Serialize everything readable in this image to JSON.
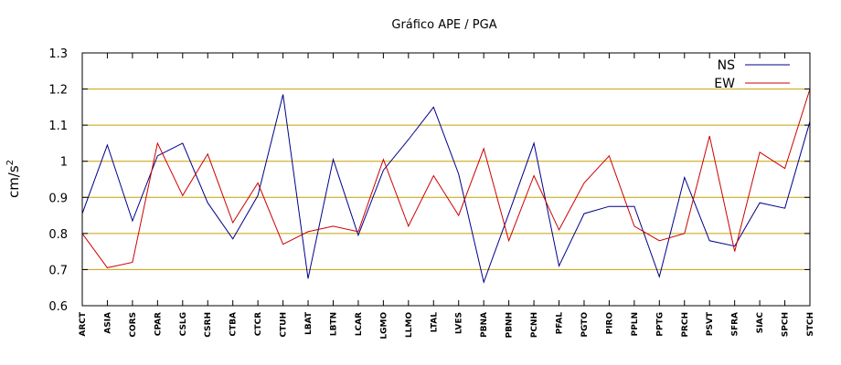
{
  "chart_data": {
    "type": "line",
    "title": "Gráfico  APE / PGA",
    "ylabel": "cm/s",
    "ylabel_exponent": "2",
    "ylim": [
      0.6,
      1.3
    ],
    "yticks": [
      "0.6",
      "0.7",
      "0.8",
      "0.9",
      "1",
      "1.1",
      "1.2",
      "1.3"
    ],
    "grid": "horizontal",
    "legend": "top-right",
    "categories": [
      "ARCT",
      "ASIA",
      "CORS",
      "CPAR",
      "CSLG",
      "CSRH",
      "CTBA",
      "CTCR",
      "CTUH",
      "LBAT",
      "LBTN",
      "LCAR",
      "LGMO",
      "LLMO",
      "LTAL",
      "LVES",
      "PBNA",
      "PBNH",
      "PCNH",
      "PFAL",
      "PGTO",
      "PIRO",
      "PPLN",
      "PPTG",
      "PRCH",
      "PSVT",
      "SFRA",
      "SIAC",
      "SPCH",
      "STCH"
    ],
    "series": [
      {
        "name": "NS",
        "color": "#00008b",
        "values": [
          0.855,
          1.045,
          0.835,
          1.015,
          1.05,
          0.885,
          0.785,
          0.905,
          1.185,
          0.675,
          1.005,
          0.795,
          0.975,
          1.06,
          1.15,
          0.965,
          0.665,
          0.855,
          1.05,
          0.71,
          0.855,
          0.875,
          0.875,
          0.68,
          0.955,
          0.78,
          0.765,
          0.885,
          0.87,
          1.11
        ]
      },
      {
        "name": "EW",
        "color": "#cc0000",
        "values": [
          0.8,
          0.705,
          0.72,
          1.05,
          0.905,
          1.02,
          0.83,
          0.94,
          0.77,
          0.805,
          0.82,
          0.805,
          1.005,
          0.82,
          0.96,
          0.85,
          1.035,
          0.78,
          0.96,
          0.81,
          0.94,
          1.015,
          0.82,
          0.78,
          0.8,
          1.07,
          0.75,
          1.025,
          0.98,
          1.2
        ]
      }
    ]
  }
}
